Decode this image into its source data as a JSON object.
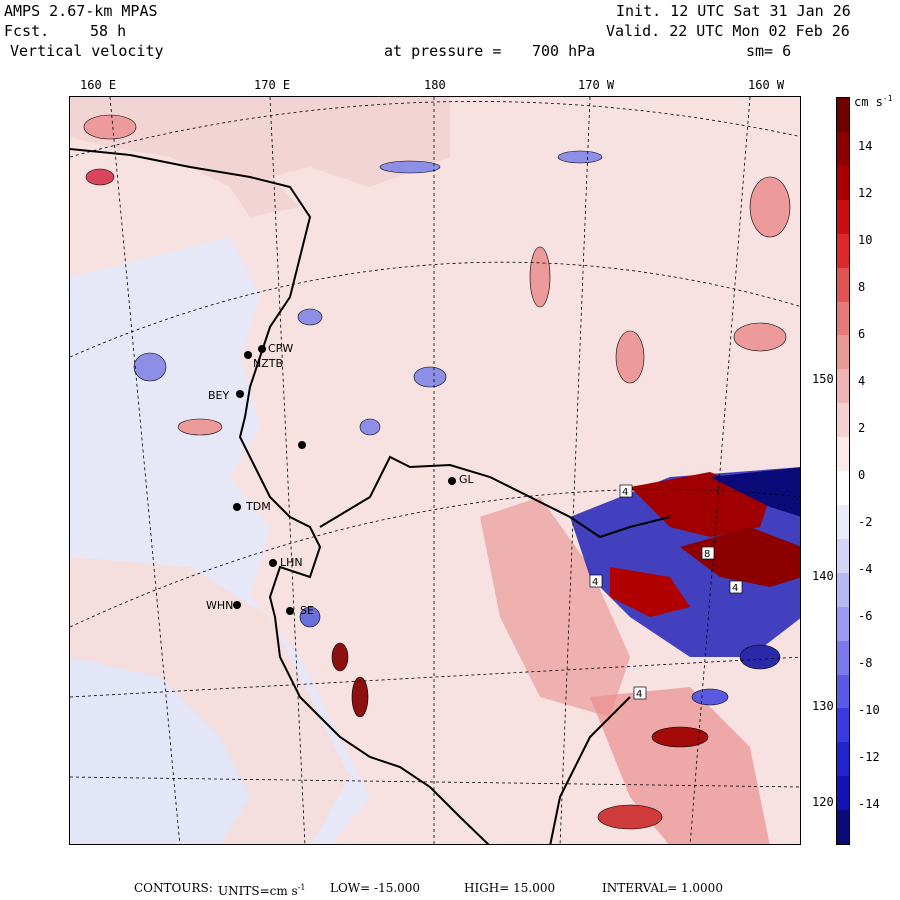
{
  "header": {
    "model": "AMPS 2.67-km MPAS",
    "fcst_prefix": "Fcst.",
    "fcst_hours": "58 h",
    "variable": "Vertical velocity",
    "pressure_label": "at pressure =",
    "pressure_value": "700 hPa",
    "init": "Init. 12 UTC Sat 31 Jan 26",
    "valid": "Valid. 22 UTC Mon 02 Feb 26",
    "smoothing": "sm= 6"
  },
  "map": {
    "top_longitude_labels": [
      "160 E",
      "170 E",
      "180",
      "170 W",
      "160 W"
    ],
    "right_longitude_labels": [
      "150 W",
      "140 W",
      "130 W",
      "120 W"
    ],
    "stations": [
      "CPW",
      "NZTB",
      "BEY",
      "TDM",
      "LHN",
      "WHN",
      "SE",
      "GL"
    ],
    "contour_labels": [
      "4",
      "4",
      "8",
      "4",
      "4"
    ],
    "colors": {
      "light_pink": "#f7dcdc",
      "pink": "#ec9a9a",
      "light_blue": "#e6e9f8",
      "blue": "#6f78e6",
      "dark_blue": "#1414b4",
      "dark_red": "#8c0000",
      "coastline": "#000000"
    }
  },
  "colorbar": {
    "units": "cm s",
    "units_exp": "-1",
    "tick_labels": [
      "14",
      "12",
      "10",
      "8",
      "6",
      "4",
      "2",
      "0",
      "-2",
      "-4",
      "-6",
      "-8",
      "-10",
      "-12",
      "-14"
    ],
    "colors": [
      "#0a0a78",
      "#1414b4",
      "#2323cd",
      "#3a3ae0",
      "#5a5ae8",
      "#7a7aee",
      "#9a9af2",
      "#b8b8f5",
      "#d4d4f8",
      "#eaeaf9",
      "#ffffff",
      "#faeaea",
      "#f5d0d0",
      "#efb5b5",
      "#ea9999",
      "#e67a7a",
      "#e25555",
      "#dc2a2a",
      "#c81010",
      "#aa0000",
      "#8c0000",
      "#6e0000"
    ]
  },
  "footer": {
    "contours": "CONTOURS:",
    "units": "UNITS=cm s",
    "units_exp": "-1",
    "low": "LOW= -15.000",
    "high": "HIGH= 15.000",
    "interval": "INTERVAL= 1.0000"
  }
}
